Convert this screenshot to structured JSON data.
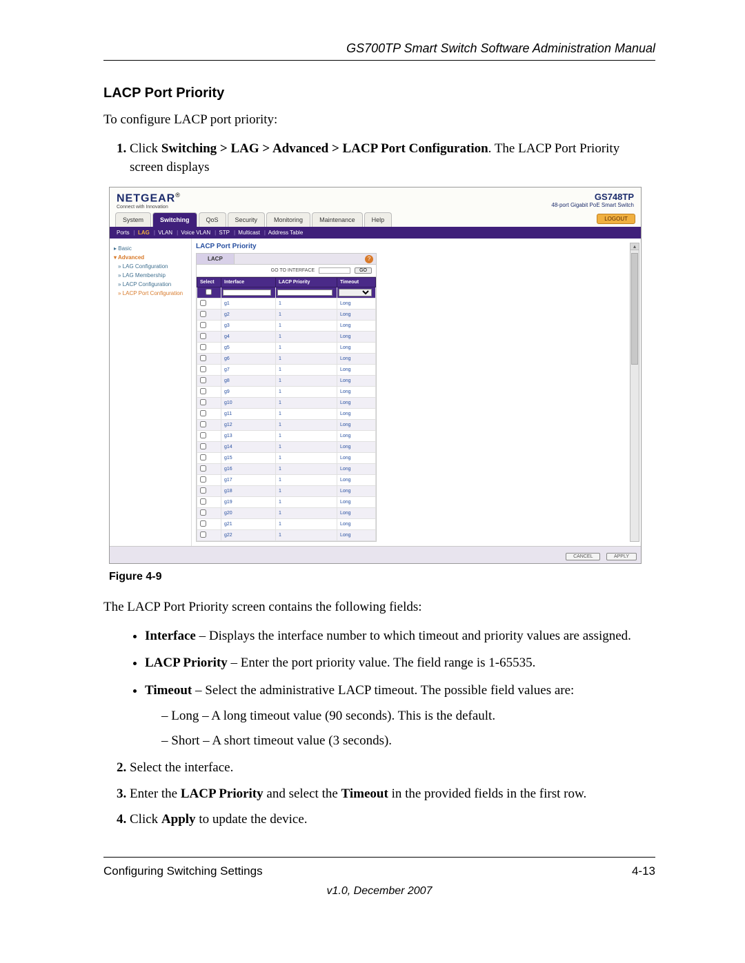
{
  "doc": {
    "header": "GS700TP Smart Switch Software Administration Manual",
    "section_title": "LACP Port Priority",
    "intro": "To configure LACP port priority:",
    "step1_a": "Click ",
    "step1_b": "Switching > LAG > Advanced > LACP Port Configuration",
    "step1_c": ". The LACP Port Priority screen displays",
    "figure_caption": "Figure 4-9",
    "fields_intro": "The LACP Port Priority screen contains the following fields:",
    "field1_a": "Interface",
    "field1_b": " – Displays the interface number to which timeout and priority values are assigned.",
    "field2_a": "LACP Priority",
    "field2_b": " – Enter the port priority value. The field range is 1-65535.",
    "field3_a": "Timeout",
    "field3_b": " – Select the administrative LACP timeout. The possible field values are:",
    "sub_long": "Long – A long timeout value (90 seconds). This is the default.",
    "sub_short": "Short – A short timeout value (3 seconds).",
    "step2": "Select the interface.",
    "step3_a": "Enter the ",
    "step3_b": "LACP Priority",
    "step3_c": " and select the ",
    "step3_d": "Timeout",
    "step3_e": " in the provided fields in the first row.",
    "step4_a": "Click ",
    "step4_b": "Apply",
    "step4_c": " to update the device.",
    "footer_left": "Configuring Switching Settings",
    "footer_right": "4-13",
    "version": "v1.0, December 2007"
  },
  "ui": {
    "brand": "NETGEAR",
    "brand_sub": "Connect with Innovation",
    "model_num": "GS748TP",
    "model_desc": "48-port Gigabit PoE Smart Switch",
    "tabs": [
      "System",
      "Switching",
      "QoS",
      "Security",
      "Monitoring",
      "Maintenance",
      "Help"
    ],
    "active_tab_index": 1,
    "logout": "LOGOUT",
    "subnav": [
      "Ports",
      "LAG",
      "VLAN",
      "Voice VLAN",
      "STP",
      "Multicast",
      "Address Table"
    ],
    "subnav_selected": 1,
    "side": {
      "basic": "Basic",
      "advanced": "Advanced",
      "items": [
        "LAG Configuration",
        "LAG Membership",
        "LACP Configuration",
        "LACP Port Configuration"
      ],
      "selected": 3
    },
    "panel_title": "LACP Port Priority",
    "panel_tab": "LACP",
    "goto_label": "GO TO INTERFACE",
    "goto_btn": "GO",
    "columns": [
      "Select",
      "Interface",
      "LACP Priority",
      "Timeout"
    ],
    "rows": [
      {
        "if": "g1",
        "pr": "1",
        "to": "Long"
      },
      {
        "if": "g2",
        "pr": "1",
        "to": "Long"
      },
      {
        "if": "g3",
        "pr": "1",
        "to": "Long"
      },
      {
        "if": "g4",
        "pr": "1",
        "to": "Long"
      },
      {
        "if": "g5",
        "pr": "1",
        "to": "Long"
      },
      {
        "if": "g6",
        "pr": "1",
        "to": "Long"
      },
      {
        "if": "g7",
        "pr": "1",
        "to": "Long"
      },
      {
        "if": "g8",
        "pr": "1",
        "to": "Long"
      },
      {
        "if": "g9",
        "pr": "1",
        "to": "Long"
      },
      {
        "if": "g10",
        "pr": "1",
        "to": "Long"
      },
      {
        "if": "g11",
        "pr": "1",
        "to": "Long"
      },
      {
        "if": "g12",
        "pr": "1",
        "to": "Long"
      },
      {
        "if": "g13",
        "pr": "1",
        "to": "Long"
      },
      {
        "if": "g14",
        "pr": "1",
        "to": "Long"
      },
      {
        "if": "g15",
        "pr": "1",
        "to": "Long"
      },
      {
        "if": "g16",
        "pr": "1",
        "to": "Long"
      },
      {
        "if": "g17",
        "pr": "1",
        "to": "Long"
      },
      {
        "if": "g18",
        "pr": "1",
        "to": "Long"
      },
      {
        "if": "g19",
        "pr": "1",
        "to": "Long"
      },
      {
        "if": "g20",
        "pr": "1",
        "to": "Long"
      },
      {
        "if": "g21",
        "pr": "1",
        "to": "Long"
      },
      {
        "if": "g22",
        "pr": "1",
        "to": "Long"
      }
    ],
    "cancel": "CANCEL",
    "apply": "APPLY",
    "colors": {
      "accent_purple": "#3f1f7a",
      "accent_orange": "#d87a2a",
      "link_blue": "#2850a0",
      "row_alt": "#f1eff6"
    }
  }
}
